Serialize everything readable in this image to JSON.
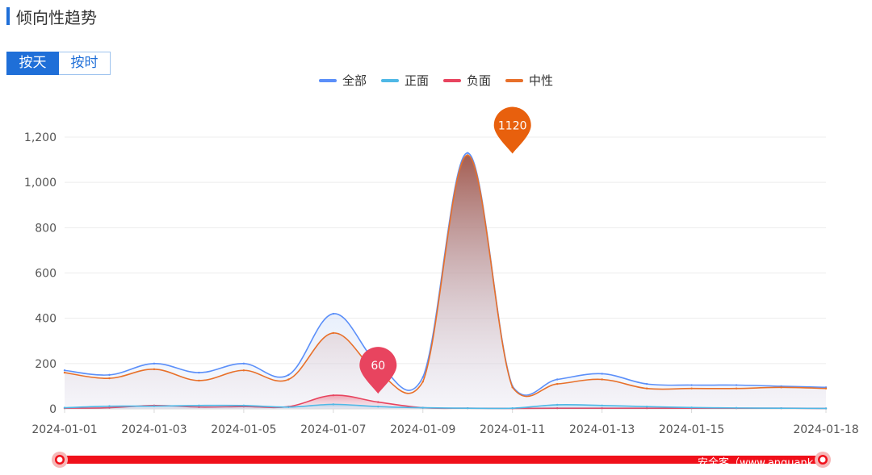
{
  "header": {
    "title": "倾向性趋势"
  },
  "toggle": {
    "day_label": "按天",
    "hour_label": "按时"
  },
  "watermark": "安全客（www.anquank",
  "chart_data": {
    "type": "area",
    "x_ticks": [
      "2024-01-01",
      "2024-01-03",
      "2024-01-05",
      "2024-01-07",
      "2024-01-09",
      "2024-01-11",
      "2024-01-13",
      "2024-01-15",
      "2024-01-18"
    ],
    "x": [
      "2024-01-01",
      "2024-01-02",
      "2024-01-03",
      "2024-01-04",
      "2024-01-05",
      "2024-01-06",
      "2024-01-07",
      "2024-01-08",
      "2024-01-09",
      "2024-01-10",
      "2024-01-11",
      "2024-01-12",
      "2024-01-13",
      "2024-01-14",
      "2024-01-15",
      "2024-01-16",
      "2024-01-17",
      "2024-01-18"
    ],
    "ylim": [
      0,
      1200
    ],
    "y_ticks": [
      "0",
      "200",
      "400",
      "600",
      "800",
      "1,000",
      "1,200"
    ],
    "grid": true,
    "legend_position": "top-center",
    "series": [
      {
        "name": "全部",
        "color": "#5b8ff9",
        "values": [
          170,
          150,
          200,
          160,
          200,
          150,
          420,
          200,
          140,
          1130,
          100,
          130,
          155,
          110,
          105,
          105,
          100,
          95
        ]
      },
      {
        "name": "正面",
        "color": "#4fb8e6",
        "values": [
          5,
          12,
          12,
          15,
          15,
          8,
          20,
          10,
          5,
          3,
          3,
          18,
          15,
          10,
          6,
          4,
          3,
          2
        ]
      },
      {
        "name": "负面",
        "color": "#e8445f",
        "values": [
          3,
          5,
          15,
          8,
          10,
          10,
          60,
          30,
          5,
          3,
          2,
          3,
          3,
          3,
          3,
          3,
          3,
          2
        ]
      },
      {
        "name": "中性",
        "color": "#e8702a",
        "values": [
          160,
          135,
          175,
          125,
          170,
          130,
          335,
          160,
          120,
          1120,
          95,
          110,
          130,
          90,
          90,
          90,
          95,
          90
        ]
      }
    ],
    "annotations": [
      {
        "label": "1120",
        "x": "2024-01-11",
        "y": 1120,
        "color": "#e8600d",
        "series": "中性"
      },
      {
        "label": "60",
        "x": "2024-01-08",
        "y": 60,
        "color": "#e8445f",
        "series": "负面"
      }
    ],
    "zoom_slider": {
      "start": 0,
      "end": 100,
      "color": "#f0101a"
    }
  }
}
